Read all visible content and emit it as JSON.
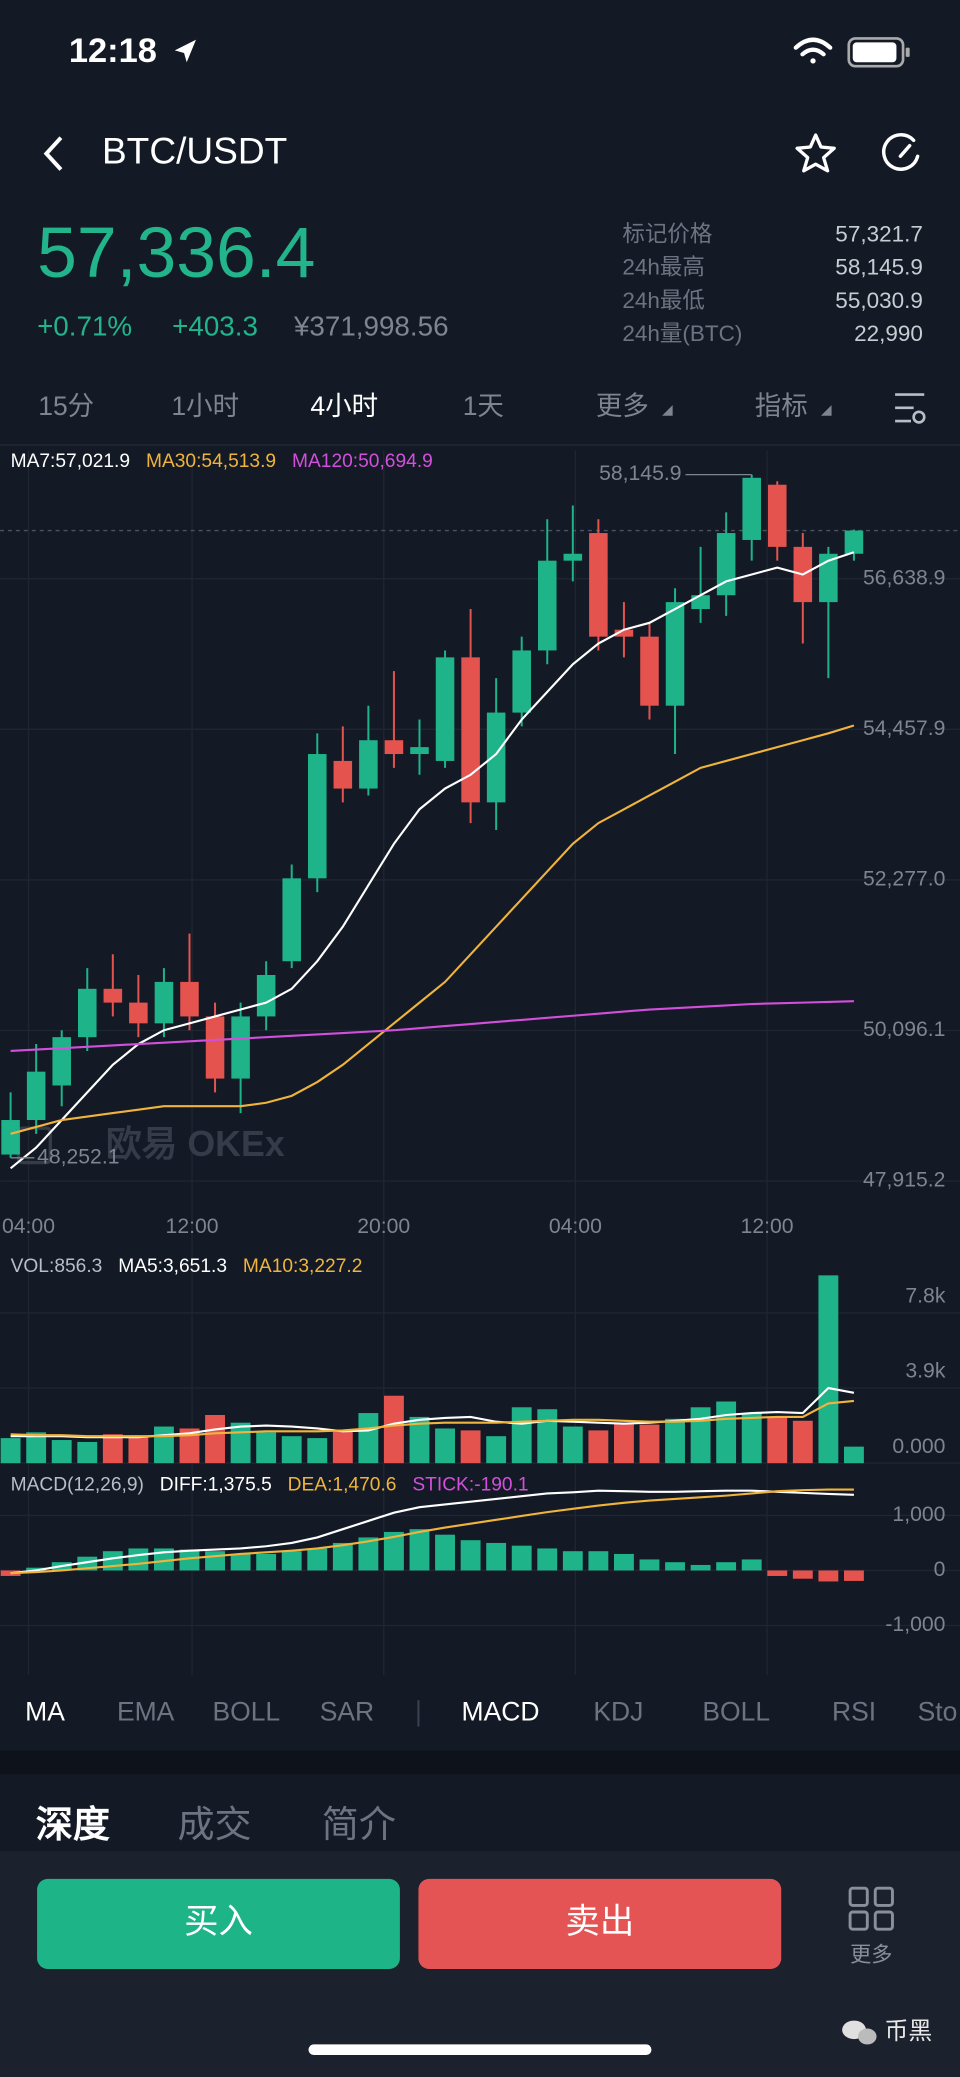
{
  "status": {
    "time": "12:18"
  },
  "header": {
    "pair": "BTC/USDT"
  },
  "ticker": {
    "price": "57,336.4",
    "change_pct": "+0.71%",
    "change": "+403.3",
    "cny": "¥371,998.56",
    "stats": [
      {
        "label": "标记价格",
        "value": "57,321.7"
      },
      {
        "label": "24h最高",
        "value": "58,145.9"
      },
      {
        "label": "24h最低",
        "value": "55,030.9"
      },
      {
        "label": "24h量(BTC)",
        "value": "22,990"
      }
    ]
  },
  "period_tabs": [
    "15分",
    "1小时",
    "4小时",
    "1天",
    "更多",
    "指标"
  ],
  "indicator_tabs": {
    "main": [
      "MA",
      "EMA",
      "BOLL",
      "SAR"
    ],
    "sub": [
      "MACD",
      "KDJ",
      "BOLL",
      "RSI",
      "Sto"
    ]
  },
  "info_tabs": [
    "深度",
    "成交",
    "简介"
  ],
  "actions": {
    "buy": "买入",
    "sell": "卖出",
    "more": "更多"
  },
  "footer_watermark": "币黑",
  "chart_data": [
    {
      "type": "candlestick",
      "watermark": "欧易 OKEx",
      "up_color": "#1fb38a",
      "down_color": "#e5534f",
      "open": [
        48300,
        48800,
        49300,
        50000,
        50700,
        50500,
        50200,
        50800,
        50300,
        49400,
        50300,
        51100,
        52300,
        54000,
        53600,
        54300,
        54100,
        54000,
        55500,
        53400,
        54700,
        55600,
        56900,
        57300,
        55900,
        55800,
        54800,
        56200,
        56400,
        57200,
        58000,
        57100,
        56300,
        57000
      ],
      "close": [
        48800,
        49500,
        50000,
        50700,
        50500,
        50200,
        50800,
        50300,
        49400,
        50300,
        50900,
        52300,
        54100,
        53600,
        54300,
        54100,
        54200,
        55500,
        53400,
        54700,
        55600,
        56900,
        57000,
        55800,
        55800,
        54800,
        56300,
        56400,
        57300,
        58100,
        57100,
        56300,
        57000,
        57336.4
      ],
      "high": [
        49200,
        49900,
        50100,
        51000,
        51200,
        50900,
        51000,
        51500,
        50500,
        50500,
        51100,
        52500,
        54400,
        54500,
        54800,
        55300,
        54600,
        55600,
        56200,
        55200,
        55800,
        57500,
        57700,
        57500,
        56300,
        56000,
        56500,
        57100,
        57600,
        58145.9,
        58050,
        57300,
        57100,
        57350
      ],
      "low": [
        48252.1,
        48600,
        49000,
        49800,
        50300,
        50000,
        50000,
        50100,
        49200,
        48900,
        50100,
        51000,
        52100,
        53400,
        53500,
        53900,
        53800,
        53900,
        53100,
        53000,
        54500,
        55400,
        56600,
        55600,
        55500,
        54600,
        54100,
        56000,
        56100,
        56900,
        56900,
        55700,
        55200,
        56900
      ],
      "series": [
        {
          "label": "MA7:57,021.9",
          "color": "#ffffff",
          "values": [
            48100,
            48400,
            48800,
            49200,
            49600,
            49900,
            50100,
            50200,
            50300,
            50400,
            50500,
            50700,
            51100,
            51600,
            52200,
            52800,
            53300,
            53600,
            53800,
            54100,
            54600,
            55000,
            55400,
            55700,
            55900,
            56000,
            56200,
            56400,
            56600,
            56700,
            56800,
            56700,
            56900,
            57021.9
          ]
        },
        {
          "label": "MA30:54,513.9",
          "color": "#f0b43c",
          "values": [
            48600,
            48700,
            48800,
            48850,
            48900,
            48950,
            49000,
            49000,
            49000,
            49000,
            49050,
            49150,
            49350,
            49600,
            49900,
            50200,
            50500,
            50800,
            51200,
            51600,
            52000,
            52400,
            52800,
            53100,
            53300,
            53500,
            53700,
            53900,
            54000,
            54100,
            54200,
            54300,
            54400,
            54513.9
          ]
        },
        {
          "label": "MA120:50,694.9",
          "color": "#d24fdc",
          "values": [
            49800,
            49820,
            49840,
            49860,
            49880,
            49900,
            49920,
            49940,
            49960,
            49980,
            50000,
            50020,
            50040,
            50060,
            50080,
            50100,
            50130,
            50160,
            50190,
            50220,
            50250,
            50280,
            50310,
            50340,
            50370,
            50400,
            50420,
            50440,
            50460,
            50480,
            50490,
            50500,
            50510,
            50520
          ]
        }
      ],
      "annotations": {
        "high": "58,145.9",
        "low": "48,252.1"
      },
      "price_line": 57336.4,
      "ylim": [
        47666,
        58500
      ],
      "yticks": [
        {
          "value": 47915.2,
          "label": "47,915.2"
        },
        {
          "value": 50096.1,
          "label": "50,096.1"
        },
        {
          "value": 52277.0,
          "label": "52,277.0"
        },
        {
          "value": 54457.9,
          "label": "54,457.9"
        },
        {
          "value": 56638.9,
          "label": "56,638.9"
        }
      ],
      "xticks": [
        {
          "value": 0.7,
          "label": "04:00"
        },
        {
          "value": 7.1,
          "label": "12:00"
        },
        {
          "value": 14.6,
          "label": "20:00"
        },
        {
          "value": 22.1,
          "label": "04:00"
        },
        {
          "value": 29.6,
          "label": "12:00"
        }
      ],
      "grid": true
    },
    {
      "type": "bar",
      "label": "VOL:856.3",
      "label_color": "#b8bdc6",
      "values": [
        1300,
        1600,
        1200,
        1100,
        1500,
        1400,
        1900,
        1800,
        2500,
        2100,
        1600,
        1400,
        1300,
        1700,
        2600,
        3500,
        2400,
        1800,
        1700,
        1400,
        2900,
        2800,
        1900,
        1700,
        2100,
        2000,
        2300,
        2900,
        3200,
        2600,
        2400,
        2200,
        9750,
        856.3
      ],
      "series": [
        {
          "label": "MA5:3,651.3",
          "color": "#ffffff",
          "values": [
            1400,
            1400,
            1400,
            1350,
            1350,
            1350,
            1450,
            1550,
            1750,
            1900,
            1950,
            1900,
            1800,
            1650,
            1700,
            2050,
            2250,
            2350,
            2400,
            2150,
            2050,
            2200,
            2150,
            2100,
            2050,
            2100,
            2200,
            2300,
            2500,
            2600,
            2650,
            2600,
            3900,
            3651.3
          ]
        },
        {
          "label": "MA10:3,227.2",
          "color": "#f0b43c",
          "values": [
            1500,
            1450,
            1450,
            1400,
            1400,
            1400,
            1400,
            1450,
            1550,
            1600,
            1650,
            1650,
            1650,
            1700,
            1800,
            1950,
            2050,
            2100,
            2100,
            2100,
            2150,
            2200,
            2250,
            2250,
            2200,
            2150,
            2150,
            2200,
            2300,
            2350,
            2400,
            2400,
            3100,
            3227.2
          ]
        }
      ],
      "ylim": [
        0,
        11000
      ],
      "yticks": [
        {
          "value": 7800,
          "label": "7.8k"
        },
        {
          "value": 3900,
          "label": "3.9k"
        },
        {
          "value": 0,
          "label": "0.000"
        }
      ]
    },
    {
      "type": "bar",
      "label": "MACD(12,26,9)",
      "label_color": "#b8bdc6",
      "stick_label": "STICK:-190.1",
      "stick_color": "#d24fdc",
      "values": [
        -100,
        50,
        150,
        250,
        350,
        400,
        400,
        380,
        350,
        300,
        300,
        350,
        400,
        500,
        600,
        700,
        750,
        650,
        550,
        500,
        450,
        400,
        350,
        350,
        300,
        200,
        150,
        100,
        150,
        200,
        -100,
        -150,
        -200,
        -190.1
      ],
      "series": [
        {
          "label": "DIFF:1,375.5",
          "color": "#ffffff",
          "values": [
            -50,
            0,
            80,
            150,
            220,
            280,
            330,
            360,
            380,
            400,
            440,
            500,
            600,
            750,
            900,
            1050,
            1150,
            1200,
            1250,
            1300,
            1350,
            1400,
            1420,
            1450,
            1440,
            1430,
            1430,
            1440,
            1450,
            1450,
            1430,
            1410,
            1390,
            1375.5
          ]
        },
        {
          "label": "DEA:1,470.6",
          "color": "#f0b43c",
          "values": [
            -50,
            -30,
            0,
            40,
            80,
            120,
            170,
            220,
            260,
            300,
            330,
            360,
            400,
            460,
            530,
            610,
            700,
            780,
            850,
            920,
            990,
            1060,
            1120,
            1180,
            1230,
            1270,
            1300,
            1330,
            1360,
            1400,
            1440,
            1460,
            1470,
            1470.6
          ]
        }
      ],
      "ylim": [
        -1900,
        1830
      ],
      "yticks": [
        {
          "value": 1000,
          "label": "1,000"
        },
        0,
        {
          "value": -1000,
          "label": "-1,000"
        }
      ]
    }
  ]
}
